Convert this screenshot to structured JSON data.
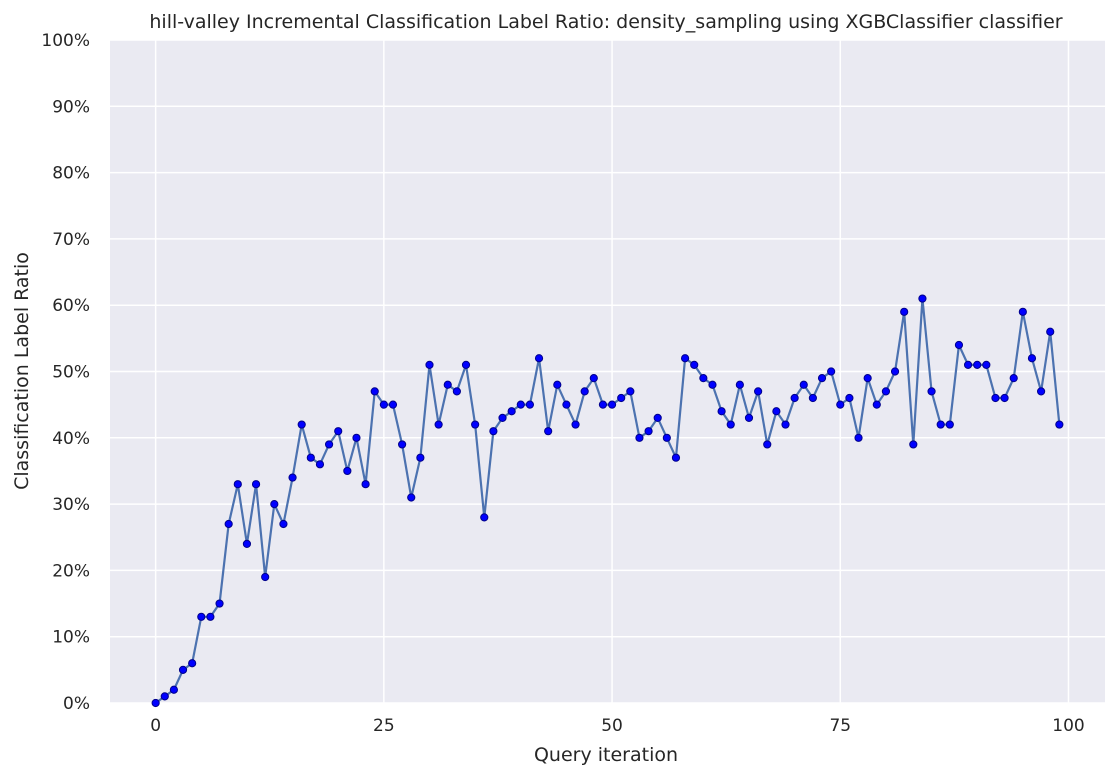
{
  "chart_data": {
    "type": "line",
    "title": "hill-valley Incremental Classification Label Ratio: density_sampling using XGBClassifier classifier",
    "xlabel": "Query iteration",
    "ylabel": "Classification Label Ratio",
    "xlim": [
      -5,
      104
    ],
    "ylim": [
      0,
      100
    ],
    "x_ticks": [
      0,
      25,
      50,
      75,
      100
    ],
    "y_ticks": [
      0,
      10,
      20,
      30,
      40,
      50,
      60,
      70,
      80,
      90,
      100
    ],
    "y_tick_format": "percent",
    "grid": true,
    "background": "#eaeaf2",
    "line_color": "#4c72b0",
    "marker_color": "#0000ff",
    "marker_edge_color": "#00008b",
    "x": [
      0,
      1,
      2,
      3,
      4,
      5,
      6,
      7,
      8,
      9,
      10,
      11,
      12,
      13,
      14,
      15,
      16,
      17,
      18,
      19,
      20,
      21,
      22,
      23,
      24,
      25,
      26,
      27,
      28,
      29,
      30,
      31,
      32,
      33,
      34,
      35,
      36,
      37,
      38,
      39,
      40,
      41,
      42,
      43,
      44,
      45,
      46,
      47,
      48,
      49,
      50,
      51,
      52,
      53,
      54,
      55,
      56,
      57,
      58,
      59,
      60,
      61,
      62,
      63,
      64,
      65,
      66,
      67,
      68,
      69,
      70,
      71,
      72,
      73,
      74,
      75,
      76,
      77,
      78,
      79,
      80,
      81,
      82,
      83,
      84,
      85,
      86,
      87,
      88,
      89,
      90,
      91,
      92,
      93,
      94,
      95,
      96,
      97,
      98,
      99
    ],
    "values": [
      0,
      1,
      2,
      5,
      6,
      13,
      13,
      15,
      27,
      33,
      24,
      33,
      19,
      30,
      27,
      34,
      42,
      37,
      36,
      39,
      41,
      35,
      40,
      33,
      47,
      45,
      45,
      39,
      31,
      37,
      51,
      42,
      48,
      47,
      51,
      42,
      28,
      41,
      43,
      44,
      45,
      45,
      52,
      41,
      48,
      45,
      42,
      47,
      49,
      45,
      45,
      46,
      47,
      40,
      41,
      43,
      40,
      37,
      52,
      51,
      49,
      48,
      44,
      42,
      48,
      43,
      47,
      39,
      44,
      42,
      46,
      48,
      46,
      49,
      50,
      45,
      46,
      40,
      49,
      45,
      47,
      50,
      59,
      39,
      61,
      47,
      42,
      42,
      54,
      51,
      51,
      51,
      46,
      46,
      49,
      59,
      52,
      47,
      56,
      42
    ]
  }
}
